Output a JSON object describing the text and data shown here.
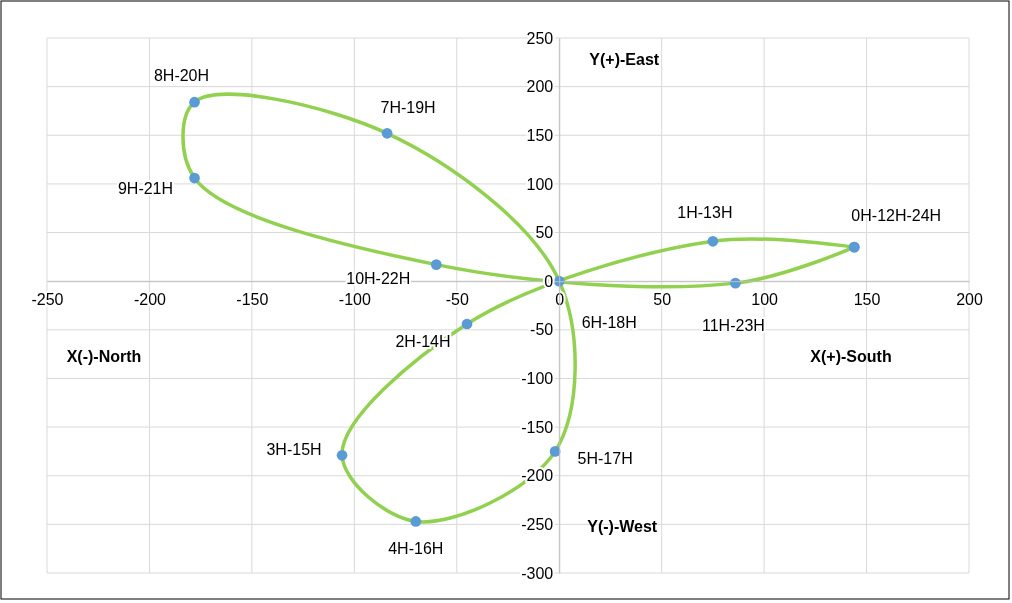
{
  "chart_data": {
    "type": "scatter",
    "xlim": [
      -250,
      200
    ],
    "ylim": [
      -300,
      250
    ],
    "xticks": [
      -250,
      -200,
      -150,
      -100,
      -50,
      0,
      50,
      100,
      150,
      200
    ],
    "yticks": [
      -300,
      -250,
      -200,
      -150,
      -100,
      -50,
      0,
      50,
      100,
      150,
      200,
      250
    ],
    "grid": true,
    "marker": "circle",
    "line_style": "solid",
    "series": [
      {
        "color": "#92d050",
        "colors": [
          "#5b9bd5",
          "#5b9bd5",
          "#5b9bd5",
          "#5b9bd5",
          "#5b9bd5",
          "#5b9bd5",
          "#5b9bd5",
          "#5b9bd5",
          "#5b9bd5",
          "#5b9bd5",
          "#5b9bd5",
          "#5b9bd5",
          "#5b9bd5"
        ],
        "x": [
          144,
          75,
          -45,
          -106,
          -70,
          -2,
          0,
          -84,
          -178,
          -178,
          -60,
          86,
          144
        ],
        "values": [
          35,
          41,
          -44,
          -179,
          -247,
          -175,
          0,
          152,
          184,
          106,
          17,
          -2,
          35
        ]
      }
    ],
    "annotations": [
      {
        "text": "0H-12H-24H",
        "x": 144,
        "y": 35
      },
      {
        "text": "1H-13H",
        "x": 75,
        "y": 41
      },
      {
        "text": "2H-14H",
        "x": -45,
        "y": -44
      },
      {
        "text": "3H-15H",
        "x": -106,
        "y": -179
      },
      {
        "text": "4H-16H",
        "x": -70,
        "y": -247
      },
      {
        "text": "5H-17H",
        "x": -2,
        "y": -175
      },
      {
        "text": "6H-18H",
        "x": 0,
        "y": 0
      },
      {
        "text": "7H-19H",
        "x": -84,
        "y": 152
      },
      {
        "text": "8H-20H",
        "x": -178,
        "y": 184
      },
      {
        "text": "9H-21H",
        "x": -178,
        "y": 106
      },
      {
        "text": "10H-22H",
        "x": -60,
        "y": 17
      },
      {
        "text": "11H-23H",
        "x": 86,
        "y": -2
      },
      "Y(+)-East",
      "Y(-)-West",
      "X(-)-North",
      "X(+)-South"
    ]
  }
}
